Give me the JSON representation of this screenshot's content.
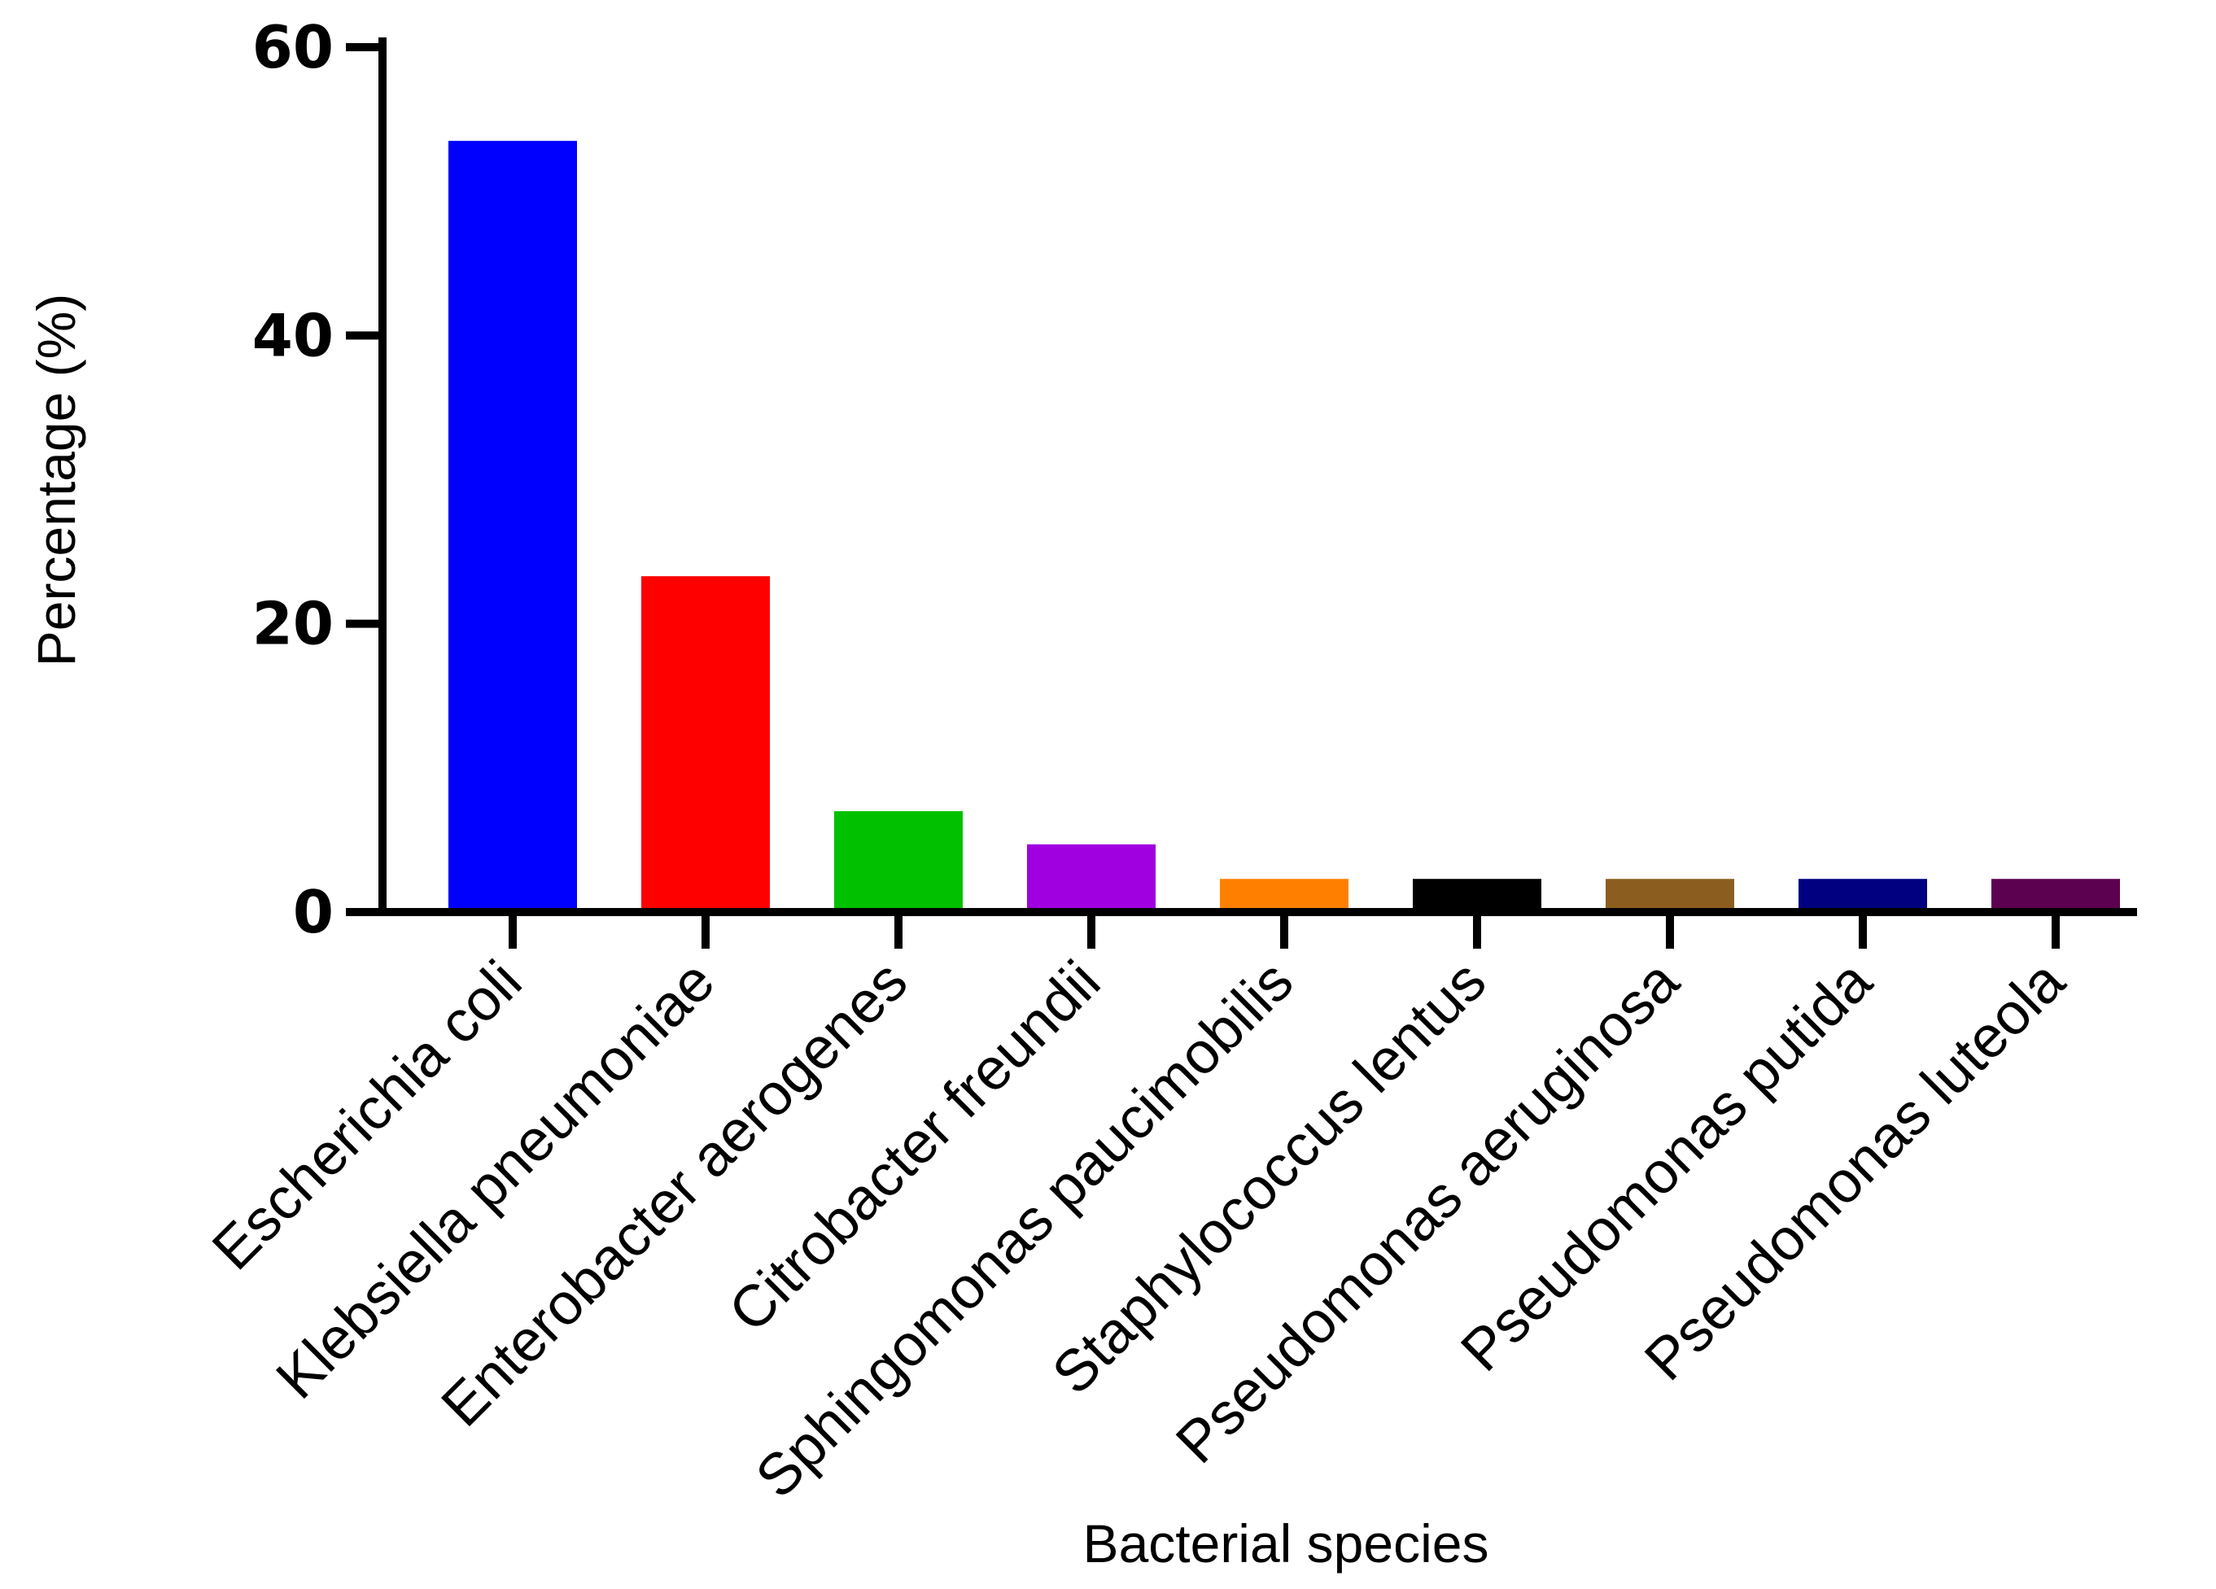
{
  "chart_data": {
    "type": "bar",
    "title": "",
    "xlabel": "Bacterial species",
    "ylabel": "Percentage (%)",
    "ylim": [
      0,
      60
    ],
    "yticks": [
      0,
      20,
      40,
      60
    ],
    "ytick_labels": [
      "0",
      "20",
      "40",
      "60"
    ],
    "grid": false,
    "categories": [
      "Escherichia coli",
      "Klebsiella pneumoniae",
      "Enterobacter aerogenes",
      "Citrobacter freundii",
      "Sphingomonas paucimobilis",
      "Staphylococcus lentus",
      "Pseudomonas aeruginosa",
      "Pseudomonas putida",
      "Pseudomonas luteola"
    ],
    "values": [
      53.5,
      23.3,
      7.0,
      4.7,
      2.3,
      2.3,
      2.3,
      2.3,
      2.3
    ],
    "colors": [
      "#0000ff",
      "#ff0000",
      "#00c000",
      "#a000e0",
      "#ff8000",
      "#000000",
      "#8b5e1f",
      "#000080",
      "#5c0050"
    ]
  }
}
